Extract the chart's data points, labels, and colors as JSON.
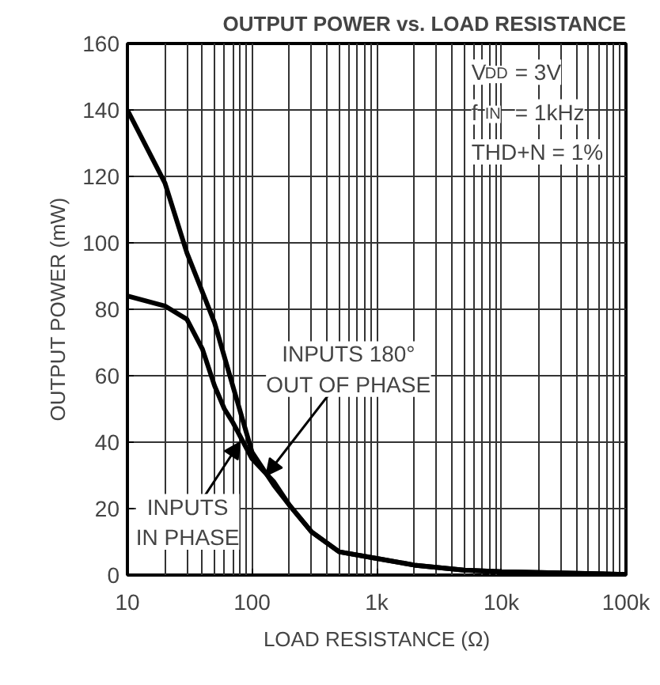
{
  "chart_data": {
    "type": "line",
    "title": "OUTPUT POWER vs. LOAD RESISTANCE",
    "xlabel": "LOAD RESISTANCE (Ω)",
    "ylabel": "OUTPUT POWER (mW)",
    "log": "x",
    "xlim": [
      10,
      100000
    ],
    "ylim": [
      0,
      160
    ],
    "xticks": [
      10,
      100,
      {
        "value": 1000,
        "label": "1k"
      },
      {
        "value": 10000,
        "label": "10k"
      },
      {
        "value": 100000,
        "label": "100k"
      }
    ],
    "yticks": [
      0,
      20,
      40,
      60,
      80,
      100,
      120,
      140,
      160
    ],
    "grid": true,
    "marker": "none",
    "line_style": "solid",
    "series": [
      {
        "color": "#000000",
        "x": [
          10,
          20,
          30,
          50,
          70,
          100,
          150,
          200,
          300,
          500,
          1000,
          2000,
          5000,
          10000,
          100000
        ],
        "values": [
          140,
          118,
          97,
          76,
          57,
          37,
          27,
          21,
          13,
          7,
          5,
          3,
          1.5,
          1,
          0.2
        ]
      },
      {
        "color": "#000000",
        "x": [
          10,
          20,
          30,
          40,
          50,
          60,
          70,
          100,
          150,
          200,
          300,
          500,
          1000,
          2000,
          5000,
          10000,
          100000
        ],
        "values": [
          84,
          81,
          77,
          68,
          57,
          50,
          46,
          35,
          28,
          21,
          13,
          7,
          5,
          3,
          1.5,
          1,
          0.2
        ]
      }
    ],
    "annotations": [
      "V$_{DD}$ = 3V",
      "f$_{IN}$ = 1kHz",
      "THD+N = 1%",
      {
        "text": "INPUTS 180°\nOUT OF PHASE",
        "x": 130,
        "y": 30
      },
      {
        "text": "INPUTS\nIN PHASE",
        "x": 80,
        "y": 40
      }
    ]
  }
}
